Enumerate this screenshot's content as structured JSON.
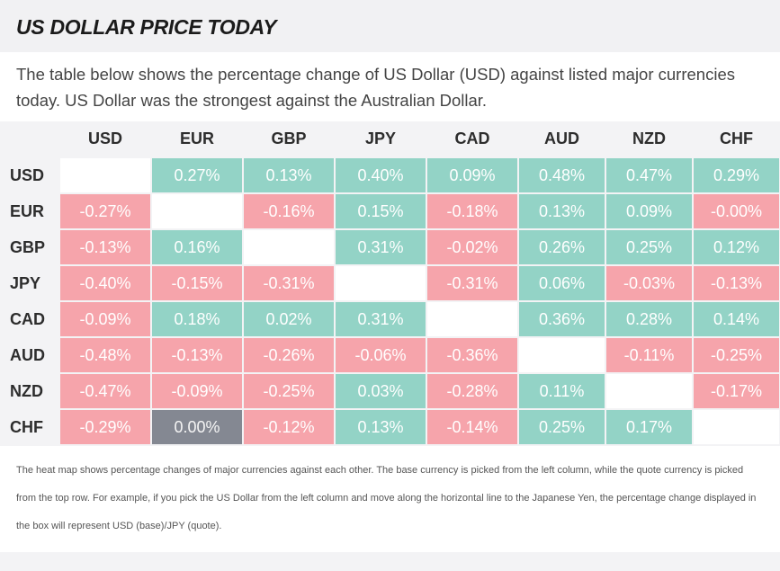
{
  "title": "US DOLLAR PRICE TODAY",
  "intro": "The table below shows the percentage change of US Dollar (USD) against listed major currencies today. US Dollar was the strongest against the Australian Dollar.",
  "columns": [
    "USD",
    "EUR",
    "GBP",
    "JPY",
    "CAD",
    "AUD",
    "NZD",
    "CHF"
  ],
  "rows": [
    {
      "label": "USD",
      "cells": [
        "",
        "0.27%",
        "0.13%",
        "0.40%",
        "0.09%",
        "0.48%",
        "0.47%",
        "0.29%"
      ]
    },
    {
      "label": "EUR",
      "cells": [
        "-0.27%",
        "",
        "-0.16%",
        "0.15%",
        "-0.18%",
        "0.13%",
        "0.09%",
        "-0.00%"
      ]
    },
    {
      "label": "GBP",
      "cells": [
        "-0.13%",
        "0.16%",
        "",
        "0.31%",
        "-0.02%",
        "0.26%",
        "0.25%",
        "0.12%"
      ]
    },
    {
      "label": "JPY",
      "cells": [
        "-0.40%",
        "-0.15%",
        "-0.31%",
        "",
        "-0.31%",
        "0.06%",
        "-0.03%",
        "-0.13%"
      ]
    },
    {
      "label": "CAD",
      "cells": [
        "-0.09%",
        "0.18%",
        "0.02%",
        "0.31%",
        "",
        "0.36%",
        "0.28%",
        "0.14%"
      ]
    },
    {
      "label": "AUD",
      "cells": [
        "-0.48%",
        "-0.13%",
        "-0.26%",
        "-0.06%",
        "-0.36%",
        "",
        "-0.11%",
        "-0.25%"
      ]
    },
    {
      "label": "NZD",
      "cells": [
        "-0.47%",
        "-0.09%",
        "-0.25%",
        "0.03%",
        "-0.28%",
        "0.11%",
        "",
        "-0.17%"
      ]
    },
    {
      "label": "CHF",
      "cells": [
        "-0.29%",
        "0.00%",
        "-0.12%",
        "0.13%",
        "-0.14%",
        "0.25%",
        "0.17%",
        ""
      ]
    }
  ],
  "colors": {
    "positive": "#93d3c6",
    "negative": "#f6a4ab",
    "neutral": "#848892",
    "empty": "#ffffff"
  },
  "footnote": "The heat map shows percentage changes of major currencies against each other. The base currency is picked from the left column, while the quote currency is picked from the top row. For example, if you pick the US Dollar from the left column and move along the horizontal line to the Japanese Yen, the percentage change displayed in the box will represent USD (base)/JPY (quote)."
}
